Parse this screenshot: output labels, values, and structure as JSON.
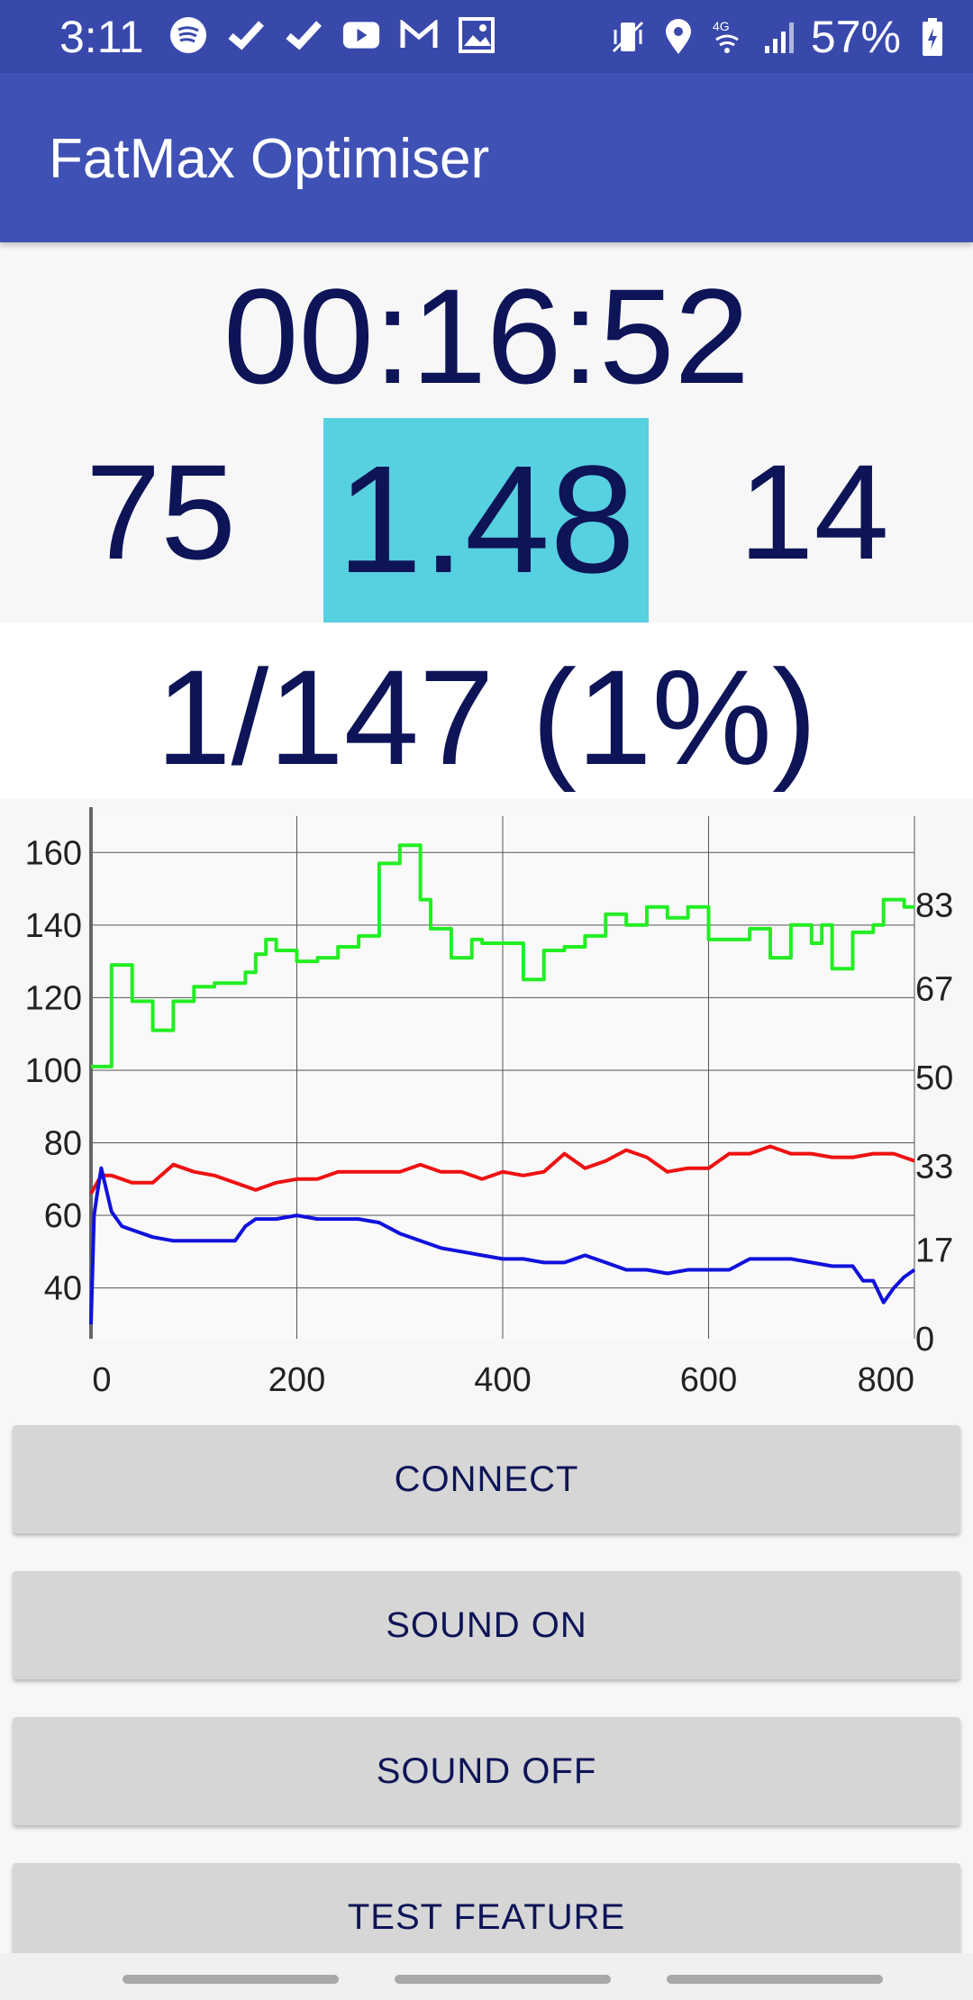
{
  "status_bar": {
    "time": "3:11",
    "battery": "57%",
    "left_icons": [
      "spotify-icon",
      "check-icon",
      "check-icon",
      "youtube-icon",
      "gmail-icon",
      "image-icon"
    ],
    "right_icons": [
      "vibrate-icon",
      "location-icon",
      "4g-signal-icon",
      "signal-bars-icon",
      "battery-icon"
    ]
  },
  "app_bar": {
    "title": "FatMax Optimiser"
  },
  "timer": "00:16:52",
  "metrics": {
    "left": "75",
    "center": "1.48",
    "right": "14"
  },
  "progress": "1/147 (1%)",
  "chart_data": {
    "type": "line",
    "x_ticks": [
      "0",
      "200",
      "400",
      "600",
      "800"
    ],
    "y_left_ticks": [
      "40",
      "60",
      "80",
      "100",
      "120",
      "140",
      "160"
    ],
    "y_right_ticks": [
      "0",
      "17",
      "33",
      "50",
      "67",
      "83"
    ],
    "xlim": [
      0,
      800
    ],
    "ylim_left": [
      26,
      170
    ],
    "grid": true,
    "series": [
      {
        "color": "#22EE22",
        "axis": "left",
        "x": [
          0,
          20,
          20,
          40,
          40,
          60,
          60,
          80,
          80,
          100,
          100,
          120,
          120,
          150,
          150,
          160,
          160,
          170,
          170,
          180,
          180,
          200,
          200,
          220,
          220,
          240,
          240,
          260,
          260,
          280,
          280,
          300,
          300,
          320,
          320,
          330,
          330,
          350,
          350,
          370,
          370,
          380,
          380,
          400,
          400,
          420,
          420,
          440,
          440,
          460,
          460,
          480,
          480,
          500,
          500,
          520,
          520,
          540,
          540,
          560,
          560,
          580,
          580,
          600,
          600,
          620,
          620,
          640,
          640,
          660,
          660,
          680,
          680,
          700,
          700,
          710,
          710,
          720,
          720,
          740,
          740,
          760,
          760,
          770,
          770,
          790,
          790,
          800
        ],
        "y": [
          101,
          101,
          129,
          129,
          119,
          119,
          111,
          111,
          119,
          119,
          123,
          123,
          124,
          124,
          127,
          127,
          132,
          132,
          136,
          136,
          133,
          133,
          130,
          130,
          131,
          131,
          134,
          134,
          137,
          137,
          157,
          157,
          162,
          162,
          147,
          147,
          139,
          139,
          131,
          131,
          136,
          136,
          135,
          135,
          135,
          135,
          125,
          125,
          133,
          133,
          134,
          134,
          137,
          137,
          143,
          143,
          140,
          140,
          145,
          145,
          142,
          142,
          145,
          145,
          136,
          136,
          136,
          136,
          139,
          139,
          131,
          131,
          140,
          140,
          135,
          135,
          140,
          140,
          128,
          128,
          138,
          138,
          140,
          140,
          147,
          147,
          145,
          145
        ]
      },
      {
        "color": "#EE1111",
        "axis": "left",
        "x": [
          0,
          10,
          20,
          40,
          60,
          80,
          100,
          120,
          140,
          160,
          180,
          200,
          220,
          240,
          260,
          280,
          300,
          320,
          340,
          360,
          380,
          400,
          420,
          440,
          460,
          480,
          500,
          520,
          540,
          560,
          580,
          600,
          620,
          640,
          660,
          680,
          700,
          720,
          740,
          760,
          780,
          800
        ],
        "y": [
          66,
          71,
          71,
          69,
          69,
          74,
          72,
          71,
          69,
          67,
          69,
          70,
          70,
          72,
          72,
          72,
          72,
          74,
          72,
          72,
          70,
          72,
          71,
          72,
          77,
          73,
          75,
          78,
          76,
          72,
          73,
          73,
          77,
          77,
          79,
          77,
          77,
          76,
          76,
          77,
          77,
          75
        ]
      },
      {
        "color": "#1111DD",
        "axis": "left",
        "x": [
          0,
          3,
          6,
          10,
          20,
          30,
          40,
          60,
          80,
          100,
          120,
          140,
          150,
          160,
          180,
          200,
          220,
          240,
          260,
          280,
          300,
          320,
          340,
          360,
          380,
          400,
          420,
          440,
          460,
          480,
          500,
          520,
          540,
          560,
          580,
          600,
          620,
          640,
          660,
          680,
          700,
          720,
          740,
          750,
          760,
          770,
          780,
          790,
          800
        ],
        "y": [
          30,
          60,
          66,
          73,
          61,
          57,
          56,
          54,
          53,
          53,
          53,
          53,
          57,
          59,
          59,
          60,
          59,
          59,
          59,
          58,
          55,
          53,
          51,
          50,
          49,
          48,
          48,
          47,
          47,
          49,
          47,
          45,
          45,
          44,
          45,
          45,
          45,
          48,
          48,
          48,
          47,
          46,
          46,
          42,
          42,
          36,
          40,
          43,
          45
        ]
      }
    ]
  },
  "buttons": {
    "connect": "CONNECT",
    "sound_on": "SOUND ON",
    "sound_off": "SOUND OFF",
    "test_feature": "TEST FEATURE"
  }
}
